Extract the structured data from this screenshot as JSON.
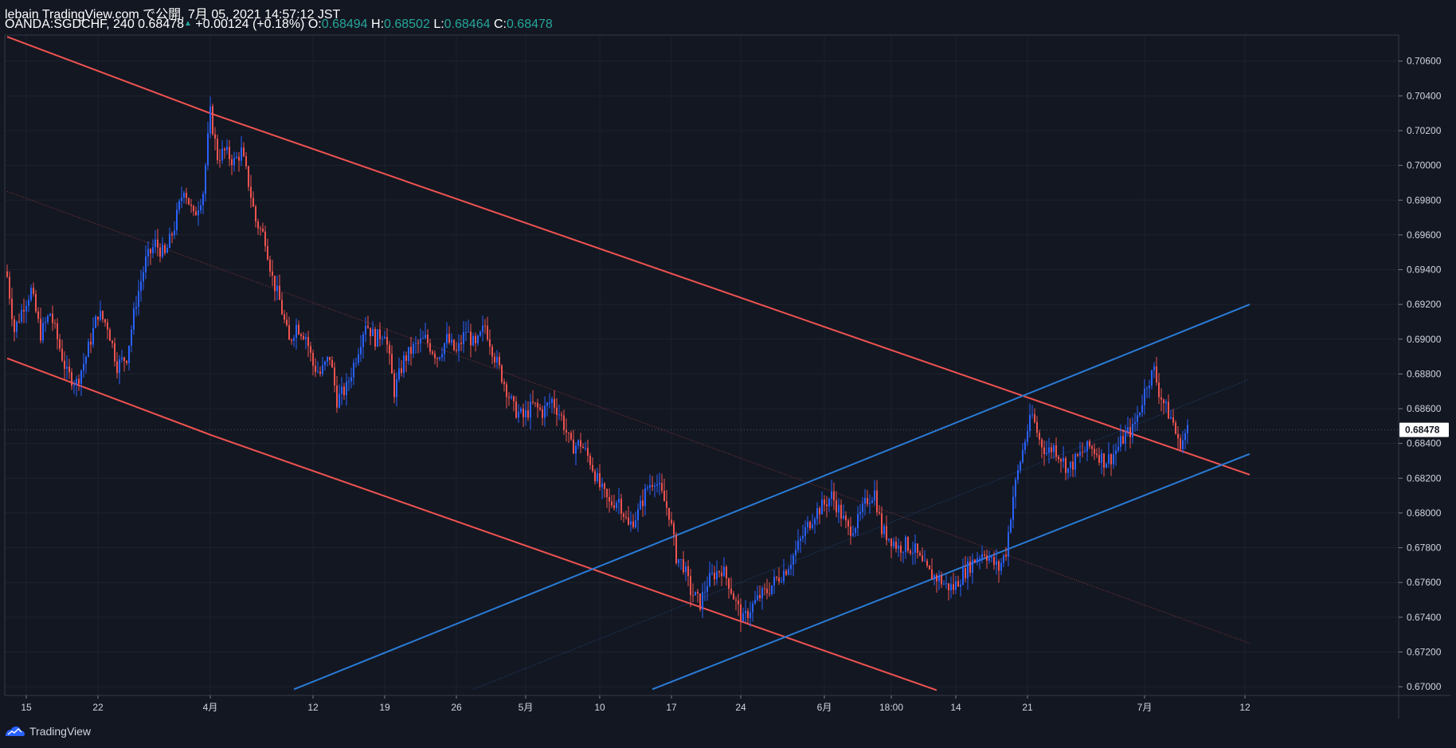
{
  "header": {
    "line1": "lebain TradingView.com で公開, 7月 05, 2021 14:57:12 JST",
    "symbol": "OANDA:SGDCHF, 240",
    "last": "0.68478",
    "change": "+0.00124 (+0.18%)",
    "o_label": "O:",
    "o_value": "0.68494",
    "h_label": "H:",
    "h_value": "0.68502",
    "l_label": "L:",
    "l_value": "0.68464",
    "c_label": "C:",
    "c_value": "0.68478"
  },
  "footer": {
    "brand": "TradingView",
    "logo_icon": "tradingview-logo-icon"
  },
  "colors": {
    "background": "#131722",
    "up": "#2962ff",
    "down": "#ef5350",
    "channel_red": "#f05350",
    "channel_blue": "#2a7bd6",
    "grid": "#1e222d",
    "price_label_bg": "#ffffff",
    "price_label_fg": "#131722"
  },
  "chart_data": {
    "type": "candlestick",
    "symbol": "OANDA:SGDCHF",
    "interval": "240",
    "ylim": [
      0.6695,
      0.7075
    ],
    "y_ticks": [
      "0.70600",
      "0.70400",
      "0.70200",
      "0.70000",
      "0.69800",
      "0.69600",
      "0.69400",
      "0.69200",
      "0.69000",
      "0.68800",
      "0.68600",
      "0.68400",
      "0.68200",
      "0.68000",
      "0.67800",
      "0.67600",
      "0.67400",
      "0.67200",
      "0.67000"
    ],
    "x_ticks": [
      {
        "label": "15",
        "bar": 8
      },
      {
        "label": "22",
        "bar": 38
      },
      {
        "label": "4月",
        "bar": 85
      },
      {
        "label": "12",
        "bar": 128
      },
      {
        "label": "19",
        "bar": 158
      },
      {
        "label": "26",
        "bar": 188
      },
      {
        "label": "5月",
        "bar": 217
      },
      {
        "label": "10",
        "bar": 248
      },
      {
        "label": "17",
        "bar": 278
      },
      {
        "label": "24",
        "bar": 307
      },
      {
        "label": "6月",
        "bar": 342
      },
      {
        "label": "18:00",
        "bar": 370
      },
      {
        "label": "14",
        "bar": 397
      },
      {
        "label": "21",
        "bar": 427
      },
      {
        "label": "7月",
        "bar": 476
      },
      {
        "label": "12",
        "bar": 518
      }
    ],
    "last_price": "0.68478",
    "last_price_value": 0.68478,
    "anchors": [
      [
        0,
        0.6936
      ],
      [
        3,
        0.6905
      ],
      [
        7,
        0.692
      ],
      [
        10,
        0.6928
      ],
      [
        14,
        0.6903
      ],
      [
        18,
        0.6915
      ],
      [
        22,
        0.6895
      ],
      [
        25,
        0.688
      ],
      [
        29,
        0.6875
      ],
      [
        33,
        0.689
      ],
      [
        38,
        0.6915
      ],
      [
        42,
        0.6908
      ],
      [
        46,
        0.6885
      ],
      [
        50,
        0.689
      ],
      [
        54,
        0.6922
      ],
      [
        58,
        0.6945
      ],
      [
        62,
        0.6955
      ],
      [
        66,
        0.6948
      ],
      [
        70,
        0.6965
      ],
      [
        74,
        0.6988
      ],
      [
        78,
        0.697
      ],
      [
        82,
        0.6985
      ],
      [
        85,
        0.703
      ],
      [
        88,
        0.7005
      ],
      [
        91,
        0.7008
      ],
      [
        95,
        0.7002
      ],
      [
        98,
        0.7008
      ],
      [
        101,
        0.699
      ],
      [
        104,
        0.6968
      ],
      [
        108,
        0.6958
      ],
      [
        111,
        0.6935
      ],
      [
        114,
        0.6922
      ],
      [
        118,
        0.6898
      ],
      [
        121,
        0.6908
      ],
      [
        125,
        0.6902
      ],
      [
        128,
        0.6885
      ],
      [
        131,
        0.688
      ],
      [
        135,
        0.689
      ],
      [
        138,
        0.6865
      ],
      [
        142,
        0.6872
      ],
      [
        146,
        0.689
      ],
      [
        150,
        0.691
      ],
      [
        154,
        0.69
      ],
      [
        158,
        0.6905
      ],
      [
        162,
        0.687
      ],
      [
        166,
        0.6888
      ],
      [
        170,
        0.6895
      ],
      [
        175,
        0.69
      ],
      [
        180,
        0.689
      ],
      [
        184,
        0.69
      ],
      [
        188,
        0.6892
      ],
      [
        192,
        0.6905
      ],
      [
        196,
        0.6895
      ],
      [
        200,
        0.6908
      ],
      [
        204,
        0.689
      ],
      [
        208,
        0.6875
      ],
      [
        212,
        0.686
      ],
      [
        216,
        0.6855
      ],
      [
        220,
        0.6862
      ],
      [
        224,
        0.6858
      ],
      [
        228,
        0.6865
      ],
      [
        232,
        0.6855
      ],
      [
        236,
        0.6838
      ],
      [
        240,
        0.684
      ],
      [
        244,
        0.683
      ],
      [
        248,
        0.6815
      ],
      [
        252,
        0.6805
      ],
      [
        256,
        0.6808
      ],
      [
        260,
        0.6792
      ],
      [
        264,
        0.68
      ],
      [
        268,
        0.6815
      ],
      [
        271,
        0.682
      ],
      [
        274,
        0.681
      ],
      [
        277,
        0.68
      ],
      [
        280,
        0.6775
      ],
      [
        283,
        0.677
      ],
      [
        286,
        0.6755
      ],
      [
        290,
        0.6748
      ],
      [
        293,
        0.676
      ],
      [
        296,
        0.6765
      ],
      [
        299,
        0.6768
      ],
      [
        302,
        0.676
      ],
      [
        305,
        0.6748
      ],
      [
        308,
        0.6738
      ],
      [
        311,
        0.6745
      ],
      [
        315,
        0.6752
      ],
      [
        318,
        0.6755
      ],
      [
        322,
        0.6762
      ],
      [
        326,
        0.6768
      ],
      [
        330,
        0.6778
      ],
      [
        334,
        0.679
      ],
      [
        338,
        0.68
      ],
      [
        342,
        0.6805
      ],
      [
        345,
        0.681
      ],
      [
        348,
        0.6802
      ],
      [
        352,
        0.679
      ],
      [
        356,
        0.6795
      ],
      [
        360,
        0.6808
      ],
      [
        363,
        0.6812
      ],
      [
        366,
        0.679
      ],
      [
        370,
        0.6785
      ],
      [
        373,
        0.678
      ],
      [
        376,
        0.6782
      ],
      [
        380,
        0.6778
      ],
      [
        383,
        0.677
      ],
      [
        386,
        0.6765
      ],
      [
        390,
        0.6762
      ],
      [
        393,
        0.6758
      ],
      [
        396,
        0.6757
      ],
      [
        400,
        0.6765
      ],
      [
        403,
        0.677
      ],
      [
        406,
        0.6775
      ],
      [
        409,
        0.6778
      ],
      [
        412,
        0.6772
      ],
      [
        415,
        0.6768
      ],
      [
        418,
        0.6778
      ],
      [
        421,
        0.681
      ],
      [
        424,
        0.683
      ],
      [
        427,
        0.6848
      ],
      [
        429,
        0.6856
      ],
      [
        432,
        0.6842
      ],
      [
        435,
        0.6835
      ],
      [
        438,
        0.6838
      ],
      [
        441,
        0.6832
      ],
      [
        444,
        0.6825
      ],
      [
        447,
        0.683
      ],
      [
        450,
        0.6835
      ],
      [
        453,
        0.6838
      ],
      [
        456,
        0.6835
      ],
      [
        459,
        0.683
      ],
      [
        462,
        0.6832
      ],
      [
        465,
        0.6838
      ],
      [
        468,
        0.6845
      ],
      [
        471,
        0.6848
      ],
      [
        474,
        0.686
      ],
      [
        477,
        0.6875
      ],
      [
        480,
        0.6882
      ],
      [
        482,
        0.687
      ],
      [
        485,
        0.686
      ],
      [
        488,
        0.6852
      ],
      [
        490,
        0.684
      ],
      [
        492,
        0.6842
      ],
      [
        494,
        0.6848
      ]
    ],
    "channels": [
      {
        "name": "upper-red",
        "color": "#f05350",
        "points": [
          [
            0,
            0.7074
          ],
          [
            85,
            0.703
          ],
          [
            520,
            0.6822
          ]
        ]
      },
      {
        "name": "lower-red",
        "color": "#f05350",
        "points": [
          [
            0,
            0.6889
          ],
          [
            85,
            0.6845
          ],
          [
            389,
            0.6698
          ]
        ]
      },
      {
        "name": "mid-red",
        "color": "#f05350",
        "dotted": true,
        "points": [
          [
            0,
            0.6985
          ],
          [
            520,
            0.6725
          ]
        ]
      },
      {
        "name": "upper-blue",
        "color": "#2a7bd6",
        "points": [
          [
            120,
            0.66985
          ],
          [
            520,
            0.692
          ]
        ]
      },
      {
        "name": "lower-blue",
        "color": "#2a7bd6",
        "points": [
          [
            270,
            0.66985
          ],
          [
            520,
            0.6834
          ]
        ]
      },
      {
        "name": "mid-blue",
        "color": "#2a7bd6",
        "dotted": true,
        "points": [
          [
            195,
            0.66985
          ],
          [
            520,
            0.6877
          ]
        ]
      }
    ]
  }
}
